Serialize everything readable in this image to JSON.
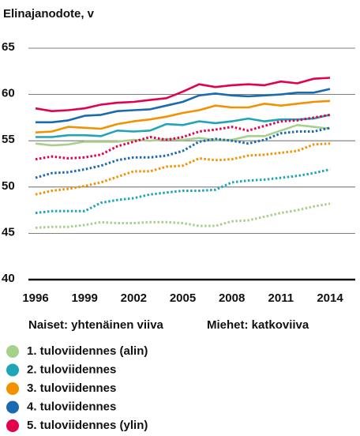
{
  "chart_data": {
    "type": "line",
    "title": "Elinajanodote, v",
    "annotations": [
      "Naiset: yhtenäinen viiva",
      "Miehet: katkoviiva"
    ],
    "x": [
      1996,
      1997,
      1998,
      1999,
      2000,
      2001,
      2002,
      2003,
      2004,
      2005,
      2006,
      2007,
      2008,
      2009,
      2010,
      2011,
      2012,
      2013,
      2014
    ],
    "xlim": [
      1996,
      2014
    ],
    "xticks": [
      1996,
      1999,
      2002,
      2005,
      2008,
      2011,
      2014
    ],
    "ylim": [
      40,
      65
    ],
    "yticks": [
      40,
      45,
      50,
      55,
      60,
      65
    ],
    "grid": true,
    "series": [
      {
        "name": "1. tuloviidennes (alin)",
        "color": "#a8d08d",
        "dashed": false,
        "values": [
          54.7,
          54.5,
          54.6,
          54.9,
          54.9,
          54.9,
          55.1,
          55.0,
          55.2,
          55.1,
          55.3,
          55.1,
          55.1,
          55.5,
          55.5,
          56.1,
          56.7,
          56.5,
          56.3
        ]
      },
      {
        "name": "2. tuloviidennes",
        "color": "#1ea5b8",
        "dashed": false,
        "values": [
          55.4,
          55.4,
          55.6,
          55.6,
          55.5,
          56.1,
          56.0,
          56.1,
          56.8,
          56.7,
          57.1,
          56.9,
          57.1,
          57.4,
          57.1,
          57.3,
          57.3,
          57.4,
          57.8
        ]
      },
      {
        "name": "3. tuloviidennes",
        "color": "#f39200",
        "dashed": false,
        "values": [
          55.9,
          56.0,
          56.5,
          56.4,
          56.3,
          56.8,
          57.1,
          57.3,
          57.6,
          58.0,
          58.3,
          58.8,
          58.6,
          58.6,
          59.0,
          58.8,
          59.0,
          59.2,
          59.3
        ]
      },
      {
        "name": "4. tuloviidennes",
        "color": "#1a6ab1",
        "dashed": false,
        "values": [
          57.0,
          57.0,
          57.2,
          57.7,
          57.8,
          58.2,
          58.3,
          58.4,
          58.8,
          59.2,
          59.9,
          60.1,
          59.9,
          59.8,
          59.9,
          60.0,
          60.2,
          60.2,
          60.6
        ]
      },
      {
        "name": "5. tuloviidennes (ylin)",
        "color": "#e2004f",
        "dashed": false,
        "values": [
          58.5,
          58.2,
          58.3,
          58.5,
          58.9,
          59.1,
          59.2,
          59.4,
          59.6,
          60.3,
          61.1,
          60.8,
          61.0,
          61.1,
          61.0,
          61.4,
          61.2,
          61.7,
          61.8
        ]
      },
      {
        "name": "1. tuloviidennes (alin)",
        "color": "#a8d08d",
        "dashed": true,
        "values": [
          45.6,
          45.7,
          45.7,
          45.9,
          46.2,
          46.1,
          46.1,
          46.2,
          46.2,
          46.1,
          45.8,
          45.8,
          46.3,
          46.4,
          46.8,
          47.2,
          47.5,
          47.9,
          48.2
        ]
      },
      {
        "name": "2. tuloviidennes",
        "color": "#1ea5b8",
        "dashed": true,
        "values": [
          47.2,
          47.4,
          47.4,
          47.4,
          48.3,
          48.6,
          48.8,
          49.2,
          49.4,
          49.6,
          49.6,
          49.7,
          50.5,
          50.7,
          50.8,
          51.0,
          51.2,
          51.5,
          51.9
        ]
      },
      {
        "name": "3. tuloviidennes",
        "color": "#f39200",
        "dashed": true,
        "values": [
          49.2,
          49.6,
          49.8,
          50.1,
          50.5,
          51.1,
          51.7,
          51.7,
          52.2,
          52.3,
          53.1,
          52.9,
          53.0,
          53.4,
          53.5,
          53.7,
          53.9,
          54.6,
          54.7
        ]
      },
      {
        "name": "4. tuloviidennes",
        "color": "#1a6ab1",
        "dashed": true,
        "values": [
          51.0,
          51.5,
          51.6,
          51.9,
          52.3,
          52.9,
          53.2,
          53.2,
          53.4,
          53.9,
          54.9,
          55.2,
          55.0,
          54.7,
          55.1,
          55.8,
          56.0,
          56.0,
          56.4
        ]
      },
      {
        "name": "5. tuloviidennes (ylin)",
        "color": "#e2004f",
        "dashed": true,
        "values": [
          53.0,
          53.3,
          53.1,
          53.2,
          53.5,
          54.4,
          54.9,
          55.4,
          55.1,
          55.4,
          56.0,
          56.2,
          56.5,
          56.1,
          56.6,
          57.1,
          57.2,
          57.5,
          57.8
        ]
      }
    ]
  }
}
